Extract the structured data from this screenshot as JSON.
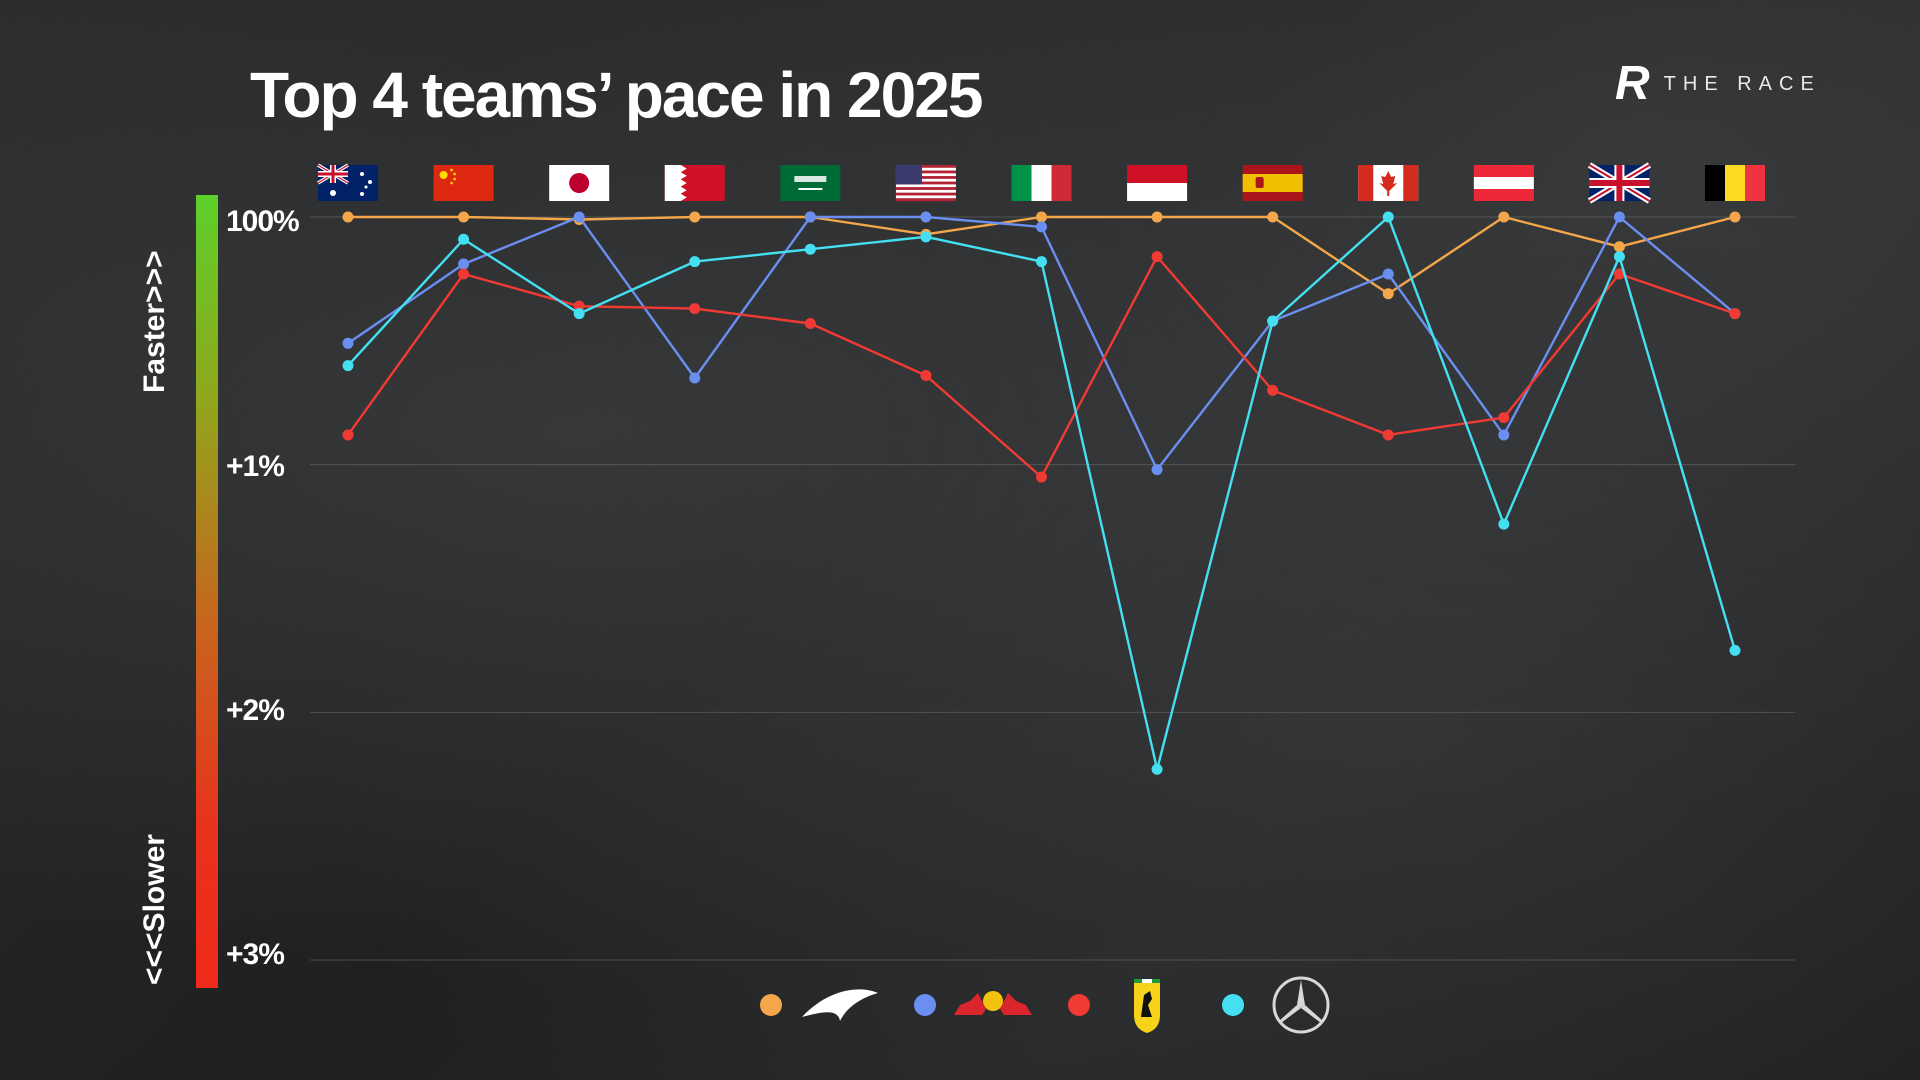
{
  "title": "Top 4 teams’ pace in 2025",
  "brand": {
    "mark": "R",
    "name": "THE RACE"
  },
  "side_labels": {
    "top": "Faster>>>",
    "bottom": "<<<Slower"
  },
  "chart_data": {
    "type": "line",
    "title": "Top 4 teams’ pace in 2025",
    "x": [
      "Australia",
      "China",
      "Japan",
      "Bahrain",
      "Saudi Arabia",
      "Miami",
      "Emilia Romagna",
      "Monaco",
      "Spain",
      "Canada",
      "Austria",
      "Great Britain",
      "Belgium"
    ],
    "y_tick_labels": [
      "100%",
      "+1%",
      "+2%",
      "+3%"
    ],
    "y_ticks": [
      0,
      1,
      2,
      3
    ],
    "ylim": [
      0,
      3
    ],
    "y_inverted": true,
    "grid": true,
    "series": [
      {
        "key": "mclaren",
        "color": "#f5a64a",
        "values": [
          0.0,
          0.0,
          0.01,
          0.0,
          0.0,
          0.07,
          0.0,
          0.0,
          0.0,
          0.31,
          0.0,
          0.12,
          0.0
        ]
      },
      {
        "key": "redbull",
        "color": "#6b8ff0",
        "values": [
          0.51,
          0.19,
          0.0,
          0.65,
          0.0,
          0.0,
          0.04,
          1.02,
          0.42,
          0.23,
          0.88,
          0.0,
          0.39
        ]
      },
      {
        "key": "ferrari",
        "color": "#f23a34",
        "values": [
          0.88,
          0.23,
          0.36,
          0.37,
          0.43,
          0.64,
          1.05,
          0.16,
          0.7,
          0.88,
          0.81,
          0.23,
          0.39
        ]
      },
      {
        "key": "mercedes",
        "color": "#44e0f2",
        "values": [
          0.6,
          0.09,
          0.39,
          0.18,
          0.13,
          0.08,
          0.18,
          2.23,
          0.42,
          0.0,
          1.24,
          0.16,
          1.75
        ]
      }
    ],
    "legend": [
      {
        "key": "mclaren",
        "color": "#f5a64a",
        "icon": "mclaren-logo-icon"
      },
      {
        "key": "redbull",
        "color": "#6b8ff0",
        "icon": "red-bull-logo-icon"
      },
      {
        "key": "ferrari",
        "color": "#f23a34",
        "icon": "ferrari-logo-icon"
      },
      {
        "key": "mercedes",
        "color": "#44e0f2",
        "icon": "mercedes-logo-icon"
      }
    ],
    "legend_position": "bottom"
  },
  "flags": [
    {
      "country": "Australia",
      "icon": "australia-flag-icon"
    },
    {
      "country": "China",
      "icon": "china-flag-icon"
    },
    {
      "country": "Japan",
      "icon": "japan-flag-icon"
    },
    {
      "country": "Bahrain",
      "icon": "bahrain-flag-icon"
    },
    {
      "country": "Saudi Arabia",
      "icon": "saudi-arabia-flag-icon"
    },
    {
      "country": "United States",
      "icon": "usa-flag-icon"
    },
    {
      "country": "Italy",
      "icon": "italy-flag-icon"
    },
    {
      "country": "Monaco",
      "icon": "monaco-flag-icon"
    },
    {
      "country": "Spain",
      "icon": "spain-flag-icon"
    },
    {
      "country": "Canada",
      "icon": "canada-flag-icon"
    },
    {
      "country": "Austria",
      "icon": "austria-flag-icon"
    },
    {
      "country": "Great Britain",
      "icon": "uk-flag-icon"
    },
    {
      "country": "Belgium",
      "icon": "belgium-flag-icon"
    }
  ]
}
